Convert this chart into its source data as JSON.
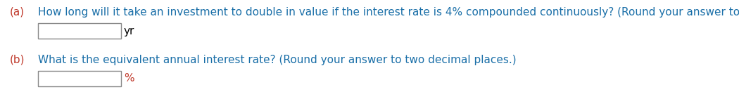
{
  "bg_color": "#ffffff",
  "label_a": "(a)",
  "text_a": "How long will it take an investment to double in value if the interest rate is 4% compounded continuously? (Round your answer to two decimal places.)",
  "unit_a": "yr",
  "label_b": "(b)",
  "text_b": "What is the equivalent annual interest rate? (Round your answer to two decimal places.)",
  "unit_b": "%",
  "label_color": "#c0392b",
  "question_color": "#1a6fa8",
  "unit_color": "#c0392b",
  "paren_color": "#000000",
  "box_edge_color": "#888888",
  "box_fill_color": "#ffffff",
  "font_size": 11.0,
  "label_font_size": 11.0
}
